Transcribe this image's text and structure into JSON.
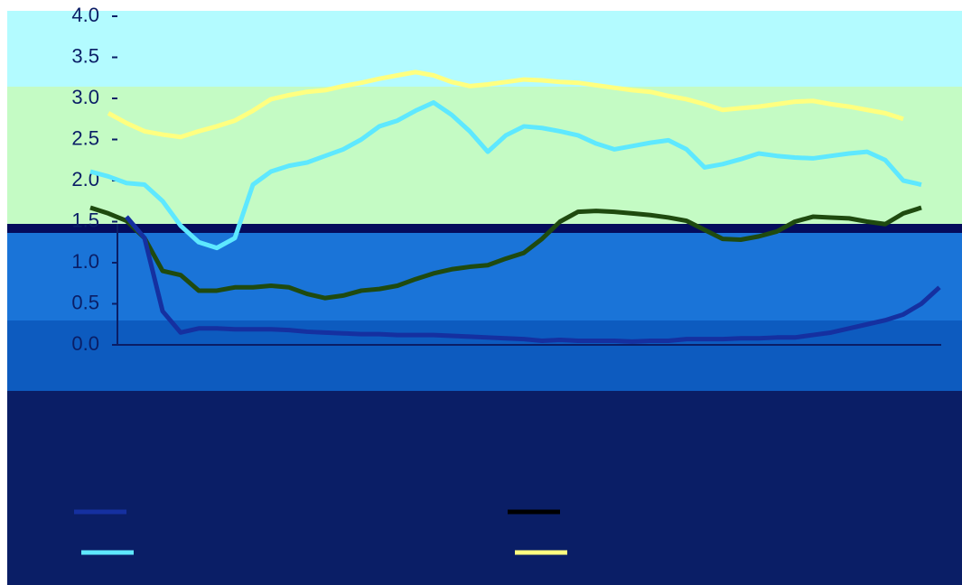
{
  "chart_data": {
    "type": "line",
    "categories": [
      null,
      null,
      null,
      null,
      null,
      null,
      null,
      null,
      null,
      null,
      null,
      null,
      null,
      null,
      null,
      null,
      null,
      null,
      null,
      null,
      null,
      null,
      null,
      null,
      null,
      null,
      null,
      null,
      null,
      null,
      null,
      null,
      null,
      null,
      null,
      null,
      null,
      null,
      null,
      null,
      null,
      null,
      null,
      null,
      null,
      null,
      null,
      null
    ],
    "series": [
      {
        "color": "#ffff80",
        "values": [
          null,
          2.82,
          2.7,
          2.6,
          2.56,
          2.53,
          2.6,
          2.66,
          2.73,
          2.85,
          2.99,
          3.04,
          3.08,
          3.1,
          3.15,
          3.19,
          3.24,
          3.28,
          3.32,
          3.28,
          3.2,
          3.15,
          3.17,
          3.2,
          3.23,
          3.22,
          3.2,
          3.19,
          3.16,
          3.13,
          3.1,
          3.08,
          3.03,
          2.99,
          2.93,
          2.86,
          2.88,
          2.9,
          2.93,
          2.96,
          2.97,
          2.93,
          2.9,
          2.86,
          2.82,
          2.75,
          null,
          null
        ]
      },
      {
        "color": "#5ee8ff",
        "values": [
          2.11,
          2.05,
          1.97,
          1.95,
          1.75,
          1.45,
          1.25,
          1.18,
          1.3,
          1.95,
          2.11,
          2.18,
          2.22,
          2.3,
          2.38,
          2.5,
          2.66,
          2.73,
          2.85,
          2.95,
          2.8,
          2.6,
          2.35,
          2.55,
          2.66,
          2.64,
          2.6,
          2.55,
          2.45,
          2.38,
          2.42,
          2.46,
          2.49,
          2.38,
          2.16,
          2.2,
          2.26,
          2.33,
          2.3,
          2.28,
          2.27,
          2.3,
          2.33,
          2.35,
          2.25,
          2.0,
          1.95,
          null
        ]
      },
      {
        "color": "#1f4a0f",
        "values": [
          1.67,
          1.6,
          1.51,
          1.3,
          0.9,
          0.85,
          0.66,
          0.66,
          0.7,
          0.7,
          0.72,
          0.7,
          0.62,
          0.57,
          0.6,
          0.66,
          0.68,
          0.72,
          0.8,
          0.87,
          0.92,
          0.95,
          0.97,
          1.05,
          1.12,
          1.29,
          1.5,
          1.62,
          1.63,
          1.62,
          1.6,
          1.58,
          1.55,
          1.51,
          1.4,
          1.29,
          1.28,
          1.32,
          1.38,
          1.5,
          1.56,
          1.55,
          1.54,
          1.5,
          1.47,
          1.6,
          1.67,
          null
        ]
      },
      {
        "color": "#1530a0",
        "values": [
          null,
          null,
          1.56,
          1.3,
          0.41,
          0.15,
          0.2,
          0.2,
          0.19,
          0.19,
          0.19,
          0.18,
          0.16,
          0.15,
          0.14,
          0.13,
          0.13,
          0.12,
          0.12,
          0.12,
          0.11,
          0.1,
          0.09,
          0.08,
          0.07,
          0.05,
          0.06,
          0.05,
          0.05,
          0.05,
          0.04,
          0.05,
          0.05,
          0.07,
          0.07,
          0.07,
          0.08,
          0.08,
          0.09,
          0.09,
          0.12,
          0.15,
          0.2,
          0.25,
          0.3,
          0.37,
          0.5,
          0.7
        ]
      }
    ],
    "ylim": [
      0,
      4
    ],
    "yticks": [
      {
        "value": 0,
        "label": "0.0"
      },
      0.5,
      {
        "value": 1,
        "label": "1.0"
      },
      1.5,
      {
        "value": 2,
        "label": "2.0"
      },
      2.5,
      {
        "value": 3,
        "label": "3.0"
      },
      3.5,
      {
        "value": 4,
        "label": "4.0"
      }
    ]
  }
}
